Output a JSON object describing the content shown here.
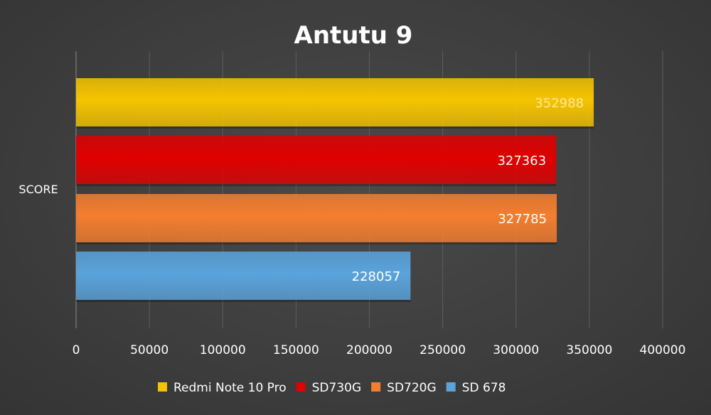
{
  "chart_data": {
    "type": "bar",
    "orientation": "horizontal",
    "title": "Antutu 9",
    "categories": [
      "SCORE"
    ],
    "series": [
      {
        "name": "Redmi Note 10 Pro",
        "values": [
          352988
        ],
        "color": "#f5c400",
        "label_color": "#fde79a"
      },
      {
        "name": "SD730G",
        "values": [
          327363
        ],
        "color": "#e00000",
        "label_color": "#ffffff"
      },
      {
        "name": "SD720G",
        "values": [
          327785
        ],
        "color": "#f47e2f",
        "label_color": "#ffffff"
      },
      {
        "name": "SD 678",
        "values": [
          228057
        ],
        "color": "#5aa3dc",
        "label_color": "#ffffff"
      }
    ],
    "xlim": [
      0,
      400000
    ],
    "xticks": [
      "0",
      "50000",
      "100000",
      "150000",
      "200000",
      "250000",
      "300000",
      "350000",
      "400000"
    ],
    "grid": true,
    "legend_position": "bottom"
  }
}
